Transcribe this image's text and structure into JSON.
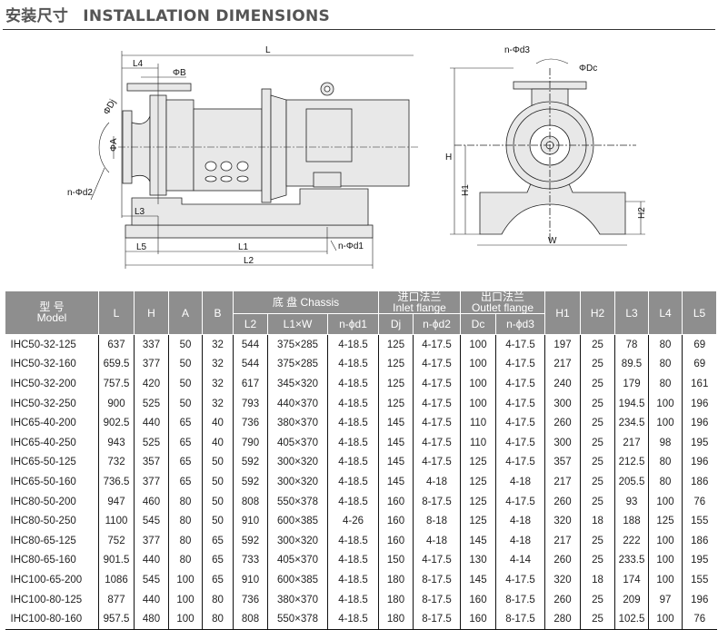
{
  "title": {
    "cn": "安装尺寸",
    "en": "INSTALLATION DIMENSIONS"
  },
  "drawing": {
    "labels": {
      "L": "L",
      "L4": "L4",
      "phiB": "ΦB",
      "phiDj": "ΦDj",
      "phiA": "ΦA",
      "nd2": "n-Φd2",
      "L3": "L3",
      "L5": "L5",
      "L1": "L1",
      "L2": "L2",
      "nd1": "n-Φd1",
      "nd3": "n-Φd3",
      "phiDc": "ΦDc",
      "H": "H",
      "H1": "H1",
      "H2": "H2",
      "W": "W"
    }
  },
  "table": {
    "header": {
      "model_cn": "型 号",
      "model_en": "Model",
      "L": "L",
      "H": "H",
      "A": "A",
      "B": "B",
      "chassis": "底 盘   Chassis",
      "L2": "L2",
      "L1W": "L1×W",
      "nd1": "n-ϕd1",
      "inlet_cn": "进口法兰",
      "inlet_en": "Inlet flange",
      "Dj": "Dj",
      "nd2": "n-ϕd2",
      "outlet_cn": "出口法兰",
      "outlet_en": "Outlet flange",
      "Dc": "Dc",
      "nd3": "n-ϕd3",
      "H1": "H1",
      "H2": "H2",
      "L3": "L3",
      "L4": "L4",
      "L5": "L5"
    },
    "rows": [
      [
        "IHC50-32-125",
        "637",
        "337",
        "50",
        "32",
        "544",
        "375×285",
        "4-18.5",
        "125",
        "4-17.5",
        "100",
        "4-17.5",
        "197",
        "25",
        "78",
        "80",
        "69"
      ],
      [
        "IHC50-32-160",
        "659.5",
        "377",
        "50",
        "32",
        "544",
        "375×285",
        "4-18.5",
        "125",
        "4-17.5",
        "100",
        "4-17.5",
        "217",
        "25",
        "89.5",
        "80",
        "69"
      ],
      [
        "IHC50-32-200",
        "757.5",
        "420",
        "50",
        "32",
        "617",
        "345×320",
        "4-18.5",
        "125",
        "4-17.5",
        "100",
        "4-17.5",
        "240",
        "25",
        "179",
        "80",
        "161"
      ],
      [
        "IHC50-32-250",
        "900",
        "525",
        "50",
        "32",
        "793",
        "440×370",
        "4-18.5",
        "125",
        "4-17.5",
        "100",
        "4-17.5",
        "300",
        "25",
        "194.5",
        "100",
        "196"
      ],
      [
        "IHC65-40-200",
        "902.5",
        "440",
        "65",
        "40",
        "736",
        "380×370",
        "4-18.5",
        "145",
        "4-17.5",
        "110",
        "4-17.5",
        "260",
        "25",
        "234.5",
        "100",
        "196"
      ],
      [
        "IHC65-40-250",
        "943",
        "525",
        "65",
        "40",
        "790",
        "405×370",
        "4-18.5",
        "145",
        "4-17.5",
        "110",
        "4-17.5",
        "300",
        "25",
        "217",
        "98",
        "195"
      ],
      [
        "IHC65-50-125",
        "732",
        "357",
        "65",
        "50",
        "592",
        "300×320",
        "4-18.5",
        "145",
        "4-17.5",
        "125",
        "4-17.5",
        "357",
        "25",
        "212.5",
        "80",
        "196"
      ],
      [
        "IHC65-50-160",
        "736.5",
        "377",
        "65",
        "50",
        "592",
        "300×320",
        "4-18.5",
        "145",
        "4-18",
        "125",
        "4-18",
        "217",
        "25",
        "205.5",
        "80",
        "186"
      ],
      [
        "IHC80-50-200",
        "947",
        "460",
        "80",
        "50",
        "808",
        "550×378",
        "4-18.5",
        "160",
        "8-17.5",
        "125",
        "4-17.5",
        "260",
        "25",
        "93",
        "100",
        "76"
      ],
      [
        "IHC80-50-250",
        "1100",
        "545",
        "80",
        "50",
        "910",
        "600×385",
        "4-26",
        "160",
        "8-18",
        "125",
        "4-18",
        "320",
        "18",
        "188",
        "125",
        "155"
      ],
      [
        "IHC80-65-125",
        "752",
        "377",
        "80",
        "65",
        "592",
        "300×320",
        "4-18.5",
        "160",
        "4-18",
        "145",
        "4-18",
        "217",
        "25",
        "222",
        "100",
        "186"
      ],
      [
        "IHC80-65-160",
        "901.5",
        "440",
        "80",
        "65",
        "733",
        "405×370",
        "4-18.5",
        "150",
        "4-17.5",
        "130",
        "4-14",
        "260",
        "25",
        "233.5",
        "100",
        "195"
      ],
      [
        "IHC100-65-200",
        "1086",
        "545",
        "100",
        "65",
        "910",
        "600×385",
        "4-18.5",
        "180",
        "8-17.5",
        "145",
        "4-17.5",
        "320",
        "18",
        "174",
        "100",
        "155"
      ],
      [
        "IHC100-80-125",
        "877",
        "440",
        "100",
        "80",
        "736",
        "380×370",
        "4-18.5",
        "180",
        "8-17.5",
        "160",
        "8-17.5",
        "260",
        "25",
        "209",
        "97",
        "196"
      ],
      [
        "IHC100-80-160",
        "957.5",
        "480",
        "100",
        "80",
        "808",
        "550×378",
        "4-18.5",
        "180",
        "8-17.5",
        "160",
        "8-17.5",
        "280",
        "25",
        "102.5",
        "100",
        "76"
      ]
    ]
  }
}
